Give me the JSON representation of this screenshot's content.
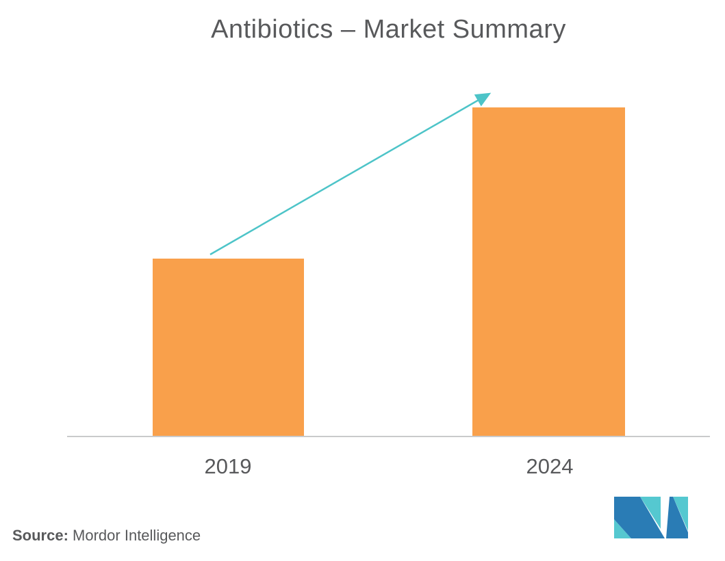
{
  "title": "Antibiotics – Market Summary",
  "chart_data": {
    "type": "bar",
    "title": "Antibiotics – Market Summary",
    "categories": [
      "2019",
      "2024"
    ],
    "values": [
      54,
      100
    ],
    "xlabel": "",
    "ylabel": "",
    "ylim": [
      0,
      112
    ],
    "grid": false,
    "legend": "none",
    "bar_color": "#F9A04B",
    "annotation_arrow": {
      "from_category": "2019",
      "to_category": "2024",
      "color": "#4DC4C8"
    }
  },
  "source": {
    "label": "Source:",
    "text": "Mordor Intelligence"
  },
  "colors": {
    "bar_orange": "#F9A04B",
    "arrow_teal": "#4DC4C8",
    "text_gray": "#58595B",
    "axis_gray": "#C9CACB",
    "logo_blue": "#2A7CB5",
    "logo_teal": "#55C8D0"
  },
  "logo": {
    "name": "mordor-intelligence-logo"
  }
}
